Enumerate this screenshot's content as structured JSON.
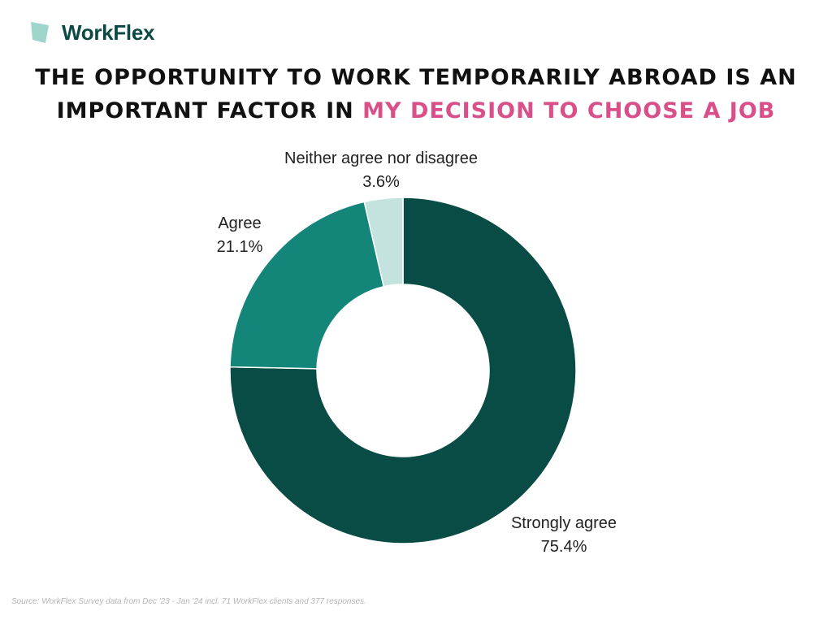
{
  "brand": {
    "name": "WorkFlex",
    "colors": {
      "mark_light": "#9fd6cc",
      "mark_dark": "#0b4a44",
      "text": "#0b4a44"
    }
  },
  "title": {
    "part1": "THE OPPORTUNITY TO WORK TEMPORARILY ABROAD IS AN IMPORTANT FACTOR IN",
    "highlight": "MY DECISION TO CHOOSE A JOB",
    "highlight_color": "#d94f8a"
  },
  "chart_data": {
    "type": "pie",
    "variant": "donut",
    "slices": [
      {
        "label": "Strongly agree",
        "value": 75.4,
        "value_label": "75.4%",
        "color": "#094b45"
      },
      {
        "label": "Agree",
        "value": 21.1,
        "value_label": "21.1%",
        "color": "#138579"
      },
      {
        "label": "Neither agree nor disagree",
        "value": 3.6,
        "value_label": "3.6%",
        "color": "#c4e3df"
      }
    ],
    "start_angle": "12 o'clock",
    "direction": "clockwise"
  },
  "source": "Source: WorkFlex Survey data from Dec '23 - Jan '24 incl. 71 WorkFlex clients and 377 responses."
}
